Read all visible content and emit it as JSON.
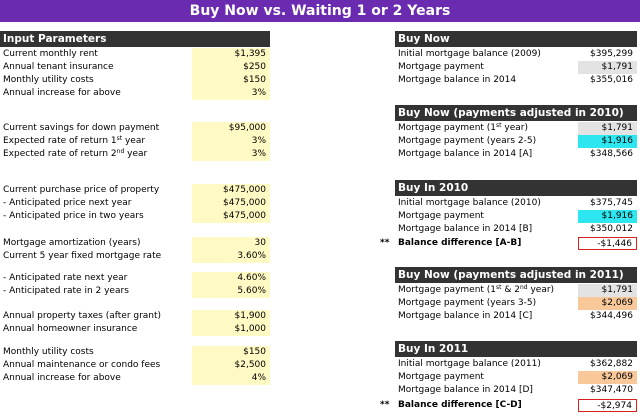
{
  "title": "Buy Now vs. Waiting 1 or 2 Years",
  "input": {
    "header": "Input Parameters",
    "rows": [
      {
        "label": "Current monthly rent",
        "value": "$1,395"
      },
      {
        "label": "Annual tenant insurance",
        "value": "$250"
      },
      {
        "label": "Monthly utility costs",
        "value": "$150"
      },
      {
        "label": "Annual increase for above",
        "value": "3%"
      },
      {
        "label": "Current savings for down payment",
        "value": "$95,000"
      },
      {
        "label": "Expected rate of return 1",
        "sup": "st",
        "label_after": " year",
        "value": "3%"
      },
      {
        "label": "Expected rate of return 2",
        "sup": "nd",
        "label_after": " year",
        "value": "3%"
      },
      {
        "label": "Current purchase price of property",
        "value": "$475,000"
      },
      {
        "label": "- Anticipated price next year",
        "value": "$475,000"
      },
      {
        "label": "- Anticipated price in two years",
        "value": "$475,000"
      },
      {
        "label": "Mortgage amortization (years)",
        "value": "30"
      },
      {
        "label": "Current 5 year fixed mortgage rate",
        "value": "3.60%"
      },
      {
        "label": "- Anticipated rate next year",
        "value": "4.60%"
      },
      {
        "label": "- Anticipated rate in 2 years",
        "value": "5.60%"
      },
      {
        "label": "Annual property taxes (after grant)",
        "value": "$1,900"
      },
      {
        "label": "Annual homeowner insurance",
        "value": "$1,000"
      },
      {
        "label": "Monthly utility costs",
        "value": "$150"
      },
      {
        "label": "Annual maintenance or condo fees",
        "value": "$2,500"
      },
      {
        "label": "Annual increase for above",
        "value": "4%"
      }
    ]
  },
  "buy_now": {
    "header": "Buy Now",
    "rows": [
      {
        "label": "Initial mortgage balance (2009)",
        "value": "$395,299"
      },
      {
        "label": "Mortgage payment",
        "value": "$1,791"
      },
      {
        "label": "Mortgage balance in 2014",
        "value": "$355,016"
      }
    ]
  },
  "buy_now_adj": {
    "header": "Buy Now (payments adjusted in 2010)",
    "rows": [
      {
        "label": "Mortgage payment (1",
        "sup": "st",
        "label_after": " year)",
        "value": "$1,791"
      },
      {
        "label": "Mortgage payment (years 2-5)",
        "value": "$1,916"
      },
      {
        "label": "Mortgage balance in 2014  [A]",
        "value": "$348,566"
      }
    ]
  },
  "buy_2010": {
    "header": "Buy In 2010",
    "rows": [
      {
        "label": "Initial mortgage balance (2010)",
        "value": "$375,745"
      },
      {
        "label": "Mortgage payment",
        "value": "$1,916"
      },
      {
        "label": "Mortgage balance in 2014 [B]",
        "value": "$350,012"
      },
      {
        "label": "Balance difference  [A-B]",
        "value": "-$1,446",
        "marker": "**"
      }
    ]
  },
  "buy_2010_adj": {
    "header": "Buy Now (payments adjusted in 2011)",
    "rows": [
      {
        "label": "Mortgage payment (1",
        "sup": "st",
        "label_mid": " & 2",
        "sup2": "nd",
        "label_after": " year)",
        "value": "$1,791"
      },
      {
        "label": "Mortgage payment (years 3-5)",
        "value": "$2,069"
      },
      {
        "label": "Mortgage balance in 2014  [C]",
        "value": "$344,496"
      }
    ]
  },
  "buy_2011": {
    "header": "Buy In 2011",
    "rows": [
      {
        "label": "Initial mortgage balance (2011)",
        "value": "$362,882"
      },
      {
        "label": "Mortgage payment",
        "value": "$2,069"
      },
      {
        "label": "Mortgage balance in 2014  [D]",
        "value": "$347,470"
      },
      {
        "label": "Balance difference  [C-D]",
        "value": "-$2,974",
        "marker": "**"
      }
    ]
  }
}
